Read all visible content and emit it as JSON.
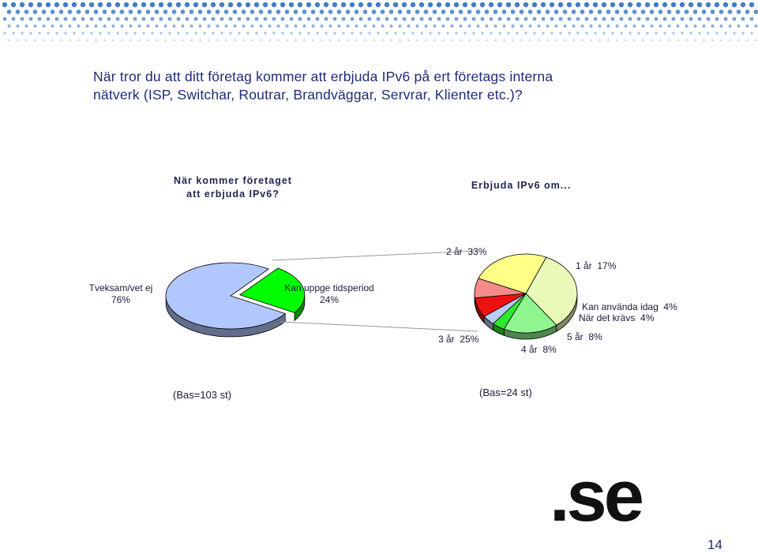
{
  "slide": {
    "title_line1": "När tror du att ditt företag kommer att erbjuda IPv6 på ert företags interna",
    "title_line2": "nätverk (ISP, Switchar, Routrar, Brandväggar, Servrar, Klienter etc.)?",
    "page_number": "14",
    "logo_text": ".se"
  },
  "colors": {
    "header_dots": "#2e6fc4",
    "text": "#1f2a7a"
  },
  "chart_data": [
    {
      "type": "pie",
      "title_line1": "När kommer företaget",
      "title_line2": "att erbjuda IPv6?",
      "base": "(Bas=103 st)",
      "slices": [
        {
          "label": "Tveksam/vet ej",
          "value": 76,
          "value_text": "76%",
          "color": "#b3c7ff"
        },
        {
          "label": "Kan uppge tidsperiod",
          "value": 24,
          "value_text": "24%",
          "color": "#00ff00",
          "exploded": true
        }
      ]
    },
    {
      "type": "pie",
      "title": "Erbjuda IPv6 om...",
      "base": "(Bas=24 st)",
      "slices": [
        {
          "label": "2 år",
          "value": 33,
          "value_text": "33%",
          "color": "#e9f9b8"
        },
        {
          "label": "1 år",
          "value": 17,
          "value_text": "17%",
          "color": "#8ff58f"
        },
        {
          "label": "Kan använda idag",
          "value": 4,
          "value_text": "4%",
          "color": "#2ee82e"
        },
        {
          "label": "När det krävs",
          "value": 4,
          "value_text": "4%",
          "color": "#b8ccf5"
        },
        {
          "label": "5 år",
          "value": 8,
          "value_text": "8%",
          "color": "#ee1111"
        },
        {
          "label": "4 år",
          "value": 8,
          "value_text": "8%",
          "color": "#f48a8a"
        },
        {
          "label": "3 år",
          "value": 25,
          "value_text": "25%",
          "color": "#ffff88"
        }
      ]
    }
  ]
}
